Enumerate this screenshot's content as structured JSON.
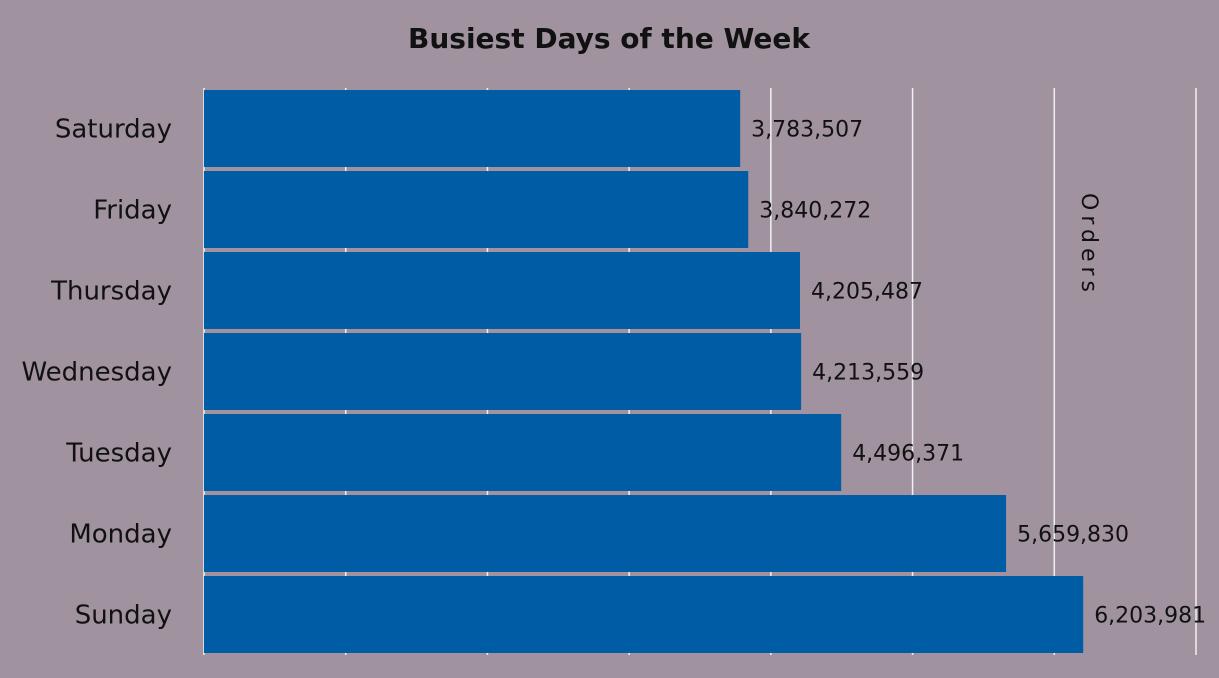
{
  "chart_data": {
    "type": "bar",
    "orientation": "horizontal",
    "title": "Busiest Days of the Week",
    "categories": [
      "Saturday",
      "Friday",
      "Thursday",
      "Wednesday",
      "Tuesday",
      "Monday",
      "Sunday"
    ],
    "series": [
      {
        "name": "Orders",
        "values": [
          3783507,
          3840272,
          4205487,
          4213559,
          4496371,
          5659830,
          6203981
        ],
        "labels": [
          "3,783,507",
          "3,840,272",
          "4,205,487",
          "4,213,559",
          "4,496,371",
          "5,659,830",
          "6,203,981"
        ]
      }
    ],
    "xlim": [
      0,
      7000000
    ],
    "grid": true,
    "gridline_step": 1000000,
    "legend": "none",
    "colors": {
      "background": "#a0939f",
      "bar": "#005ca4",
      "grid": "#f0f0f0",
      "text": "#111111"
    }
  }
}
